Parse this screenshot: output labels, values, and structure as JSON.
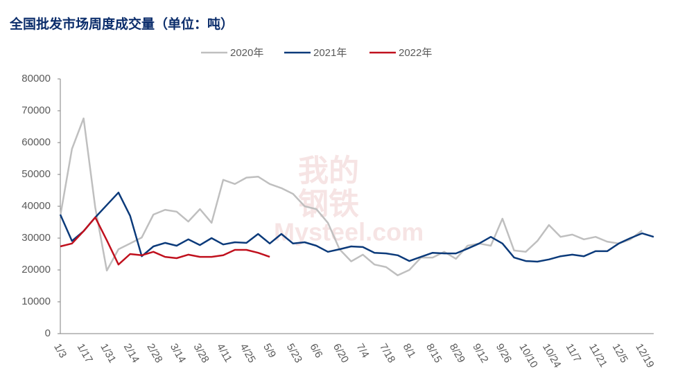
{
  "chart_data": {
    "type": "line",
    "title": "全国批发市场周度成交量（单位：吨）",
    "watermark": [
      "我的",
      "钢铁",
      "Mysteel.com"
    ],
    "categories": [
      "1/3",
      null,
      "1/17",
      null,
      "1/31",
      null,
      "2/14",
      null,
      "2/28",
      null,
      "3/14",
      null,
      "3/28",
      null,
      "4/11",
      null,
      "4/25",
      null,
      "5/9",
      null,
      "5/23",
      null,
      "6/6",
      null,
      "6/20",
      null,
      "7/4",
      null,
      "7/18",
      null,
      "8/1",
      null,
      "8/15",
      null,
      "8/29",
      null,
      "9/12",
      null,
      "9/26",
      null,
      "10/10",
      null,
      "10/24",
      null,
      "11/7",
      null,
      "11/21",
      null,
      "12/5",
      null,
      "12/19",
      null
    ],
    "series": [
      {
        "name": "2020年",
        "color": "#bfbfbf",
        "values": [
          37000,
          58000,
          67600,
          39600,
          19800,
          26500,
          28300,
          30200,
          37400,
          38900,
          38300,
          35200,
          39100,
          34800,
          48300,
          47000,
          49000,
          49300,
          47000,
          45700,
          43900,
          40000,
          39100,
          34800,
          26500,
          22700,
          24800,
          21700,
          20900,
          18300,
          20000,
          23900,
          23900,
          25700,
          23500,
          27600,
          28300,
          27600,
          36100,
          26100,
          25700,
          29100,
          34100,
          30400,
          31100,
          29600,
          30400,
          28900,
          28300,
          29600,
          32400,
          null
        ]
      },
      {
        "name": "2021年",
        "color": "#0b3a7a",
        "values": [
          37400,
          29100,
          32200,
          36500,
          40400,
          44300,
          37000,
          24300,
          27400,
          28500,
          27600,
          29600,
          27800,
          30000,
          28000,
          28700,
          28500,
          31300,
          28300,
          31300,
          28300,
          28700,
          27600,
          25700,
          26500,
          27400,
          27200,
          25400,
          25200,
          24600,
          22800,
          24100,
          25400,
          25200,
          25200,
          26700,
          28300,
          30400,
          28300,
          23900,
          22800,
          22600,
          23300,
          24300,
          24800,
          24300,
          25900,
          25900,
          28300,
          30000,
          31500,
          30400
        ]
      },
      {
        "name": "2022年",
        "color": "#c0101d",
        "values": [
          27400,
          28300,
          32200,
          36500,
          29300,
          21700,
          25000,
          24600,
          25700,
          24100,
          23700,
          24800,
          24100,
          24100,
          24600,
          26300,
          26300,
          25400,
          24100,
          null,
          null,
          null,
          null,
          null,
          null,
          null,
          null,
          null,
          null,
          null,
          null,
          null,
          null,
          null,
          null,
          null,
          null,
          null,
          null,
          null,
          null,
          null,
          null,
          null,
          null,
          null,
          null,
          null,
          null,
          null,
          null,
          null
        ]
      }
    ],
    "ylim": [
      0,
      80000
    ],
    "yticks": [
      0,
      10000,
      20000,
      30000,
      40000,
      50000,
      60000,
      70000,
      80000
    ],
    "legend": "top",
    "grid": false
  }
}
